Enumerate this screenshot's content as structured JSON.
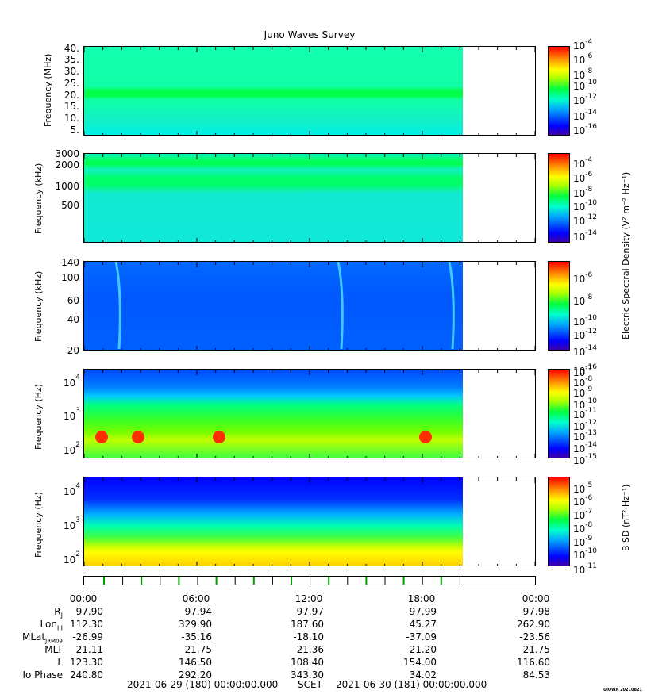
{
  "title": "Juno Waves Survey",
  "panels": [
    {
      "ylabel": "Frequency (MHz)",
      "yticks": [
        "40.",
        "35.",
        "30.",
        "25.",
        "20.",
        "15.",
        "10.",
        "5."
      ],
      "cbar_ticks": [
        "-4",
        "-6",
        "-8",
        "-10",
        "-12",
        "-14",
        "-16"
      ],
      "cbar_label": ""
    },
    {
      "ylabel": "Frequency (kHz)",
      "yticks": [
        "3000",
        "2000",
        "1000",
        "500"
      ],
      "cbar_ticks": [
        "-4",
        "-6",
        "-8",
        "-10",
        "-12",
        "-14"
      ],
      "cbar_label": ""
    },
    {
      "ylabel": "Frequency (kHz)",
      "yticks": [
        "140",
        "100",
        "60",
        "40",
        "20"
      ],
      "cbar_ticks": [
        "-6",
        "-8",
        "-10",
        "-12",
        "-14",
        "-16"
      ],
      "cbar_label": "Electric Spectral Density (V² m⁻² Hz⁻¹)"
    },
    {
      "ylabel": "Frequency (Hz)",
      "yticks": [
        "4",
        "3",
        "2"
      ],
      "cbar_ticks": [
        "-7",
        "-8",
        "-9",
        "-10",
        "-11",
        "-12",
        "-13",
        "-14",
        "-15"
      ],
      "cbar_label": ""
    },
    {
      "ylabel": "Frequency (Hz)",
      "yticks": [
        "4",
        "3",
        "2"
      ],
      "cbar_ticks": [
        "-5",
        "-6",
        "-7",
        "-8",
        "-9",
        "-10",
        "-11"
      ],
      "cbar_label": "B SD (nT² Hz⁻¹)"
    }
  ],
  "hour_labels": [
    "00:00",
    "06:00",
    "12:00",
    "18:00",
    "00:00"
  ],
  "ephemeris": [
    {
      "name": "Rj",
      "values": [
        "97.90",
        "97.94",
        "97.97",
        "97.99",
        "97.98"
      ]
    },
    {
      "name": "LonIII",
      "values": [
        "112.30",
        "329.90",
        "187.60",
        "45.27",
        "262.90"
      ]
    },
    {
      "name": "MLatJRM09",
      "values": [
        "-26.99",
        "-35.16",
        "-18.10",
        "-37.09",
        "-23.56"
      ]
    },
    {
      "name": "MLT",
      "values": [
        "21.11",
        "21.75",
        "21.36",
        "21.20",
        "21.75"
      ]
    },
    {
      "name": "L",
      "values": [
        "123.30",
        "146.50",
        "108.40",
        "154.00",
        "116.60"
      ]
    },
    {
      "name": "Io Phase",
      "values": [
        "240.80",
        "292.20",
        "343.30",
        "34.02",
        "84.53"
      ]
    }
  ],
  "footer": {
    "start": "2021-06-29 (180) 00:00:00.000",
    "mid": "SCET",
    "end": "2021-06-30 (181) 00:00:00.000"
  },
  "stamp": "UIOWA 20210821",
  "chart_data": {
    "type": "heatmap",
    "title": "Juno Waves Survey",
    "x_range": [
      "2021-06-29 00:00",
      "2021-06-30 00:00"
    ],
    "data_coverage_end": "2021-06-29 20:10",
    "panels": [
      {
        "ylabel": "Frequency (MHz)",
        "ylim": [
          3.5,
          41
        ],
        "scale": "linear",
        "cbar_range_exp": [
          -16,
          -4
        ]
      },
      {
        "ylabel": "Frequency (kHz)",
        "ylim": [
          140,
          3000
        ],
        "scale": "log",
        "cbar_range_exp": [
          -14,
          -4
        ]
      },
      {
        "ylabel": "Frequency (kHz)",
        "ylim": [
          20,
          140
        ],
        "scale": "log",
        "cbar_range_exp": [
          -16,
          -6
        ]
      },
      {
        "ylabel": "Frequency (Hz)",
        "ylim": [
          50,
          20000
        ],
        "scale": "log",
        "cbar_range_exp": [
          -15,
          -7
        ]
      },
      {
        "ylabel": "Frequency (Hz)",
        "ylim": [
          50,
          20000
        ],
        "scale": "log",
        "cbar_range_exp": [
          -11,
          -5
        ]
      }
    ]
  }
}
